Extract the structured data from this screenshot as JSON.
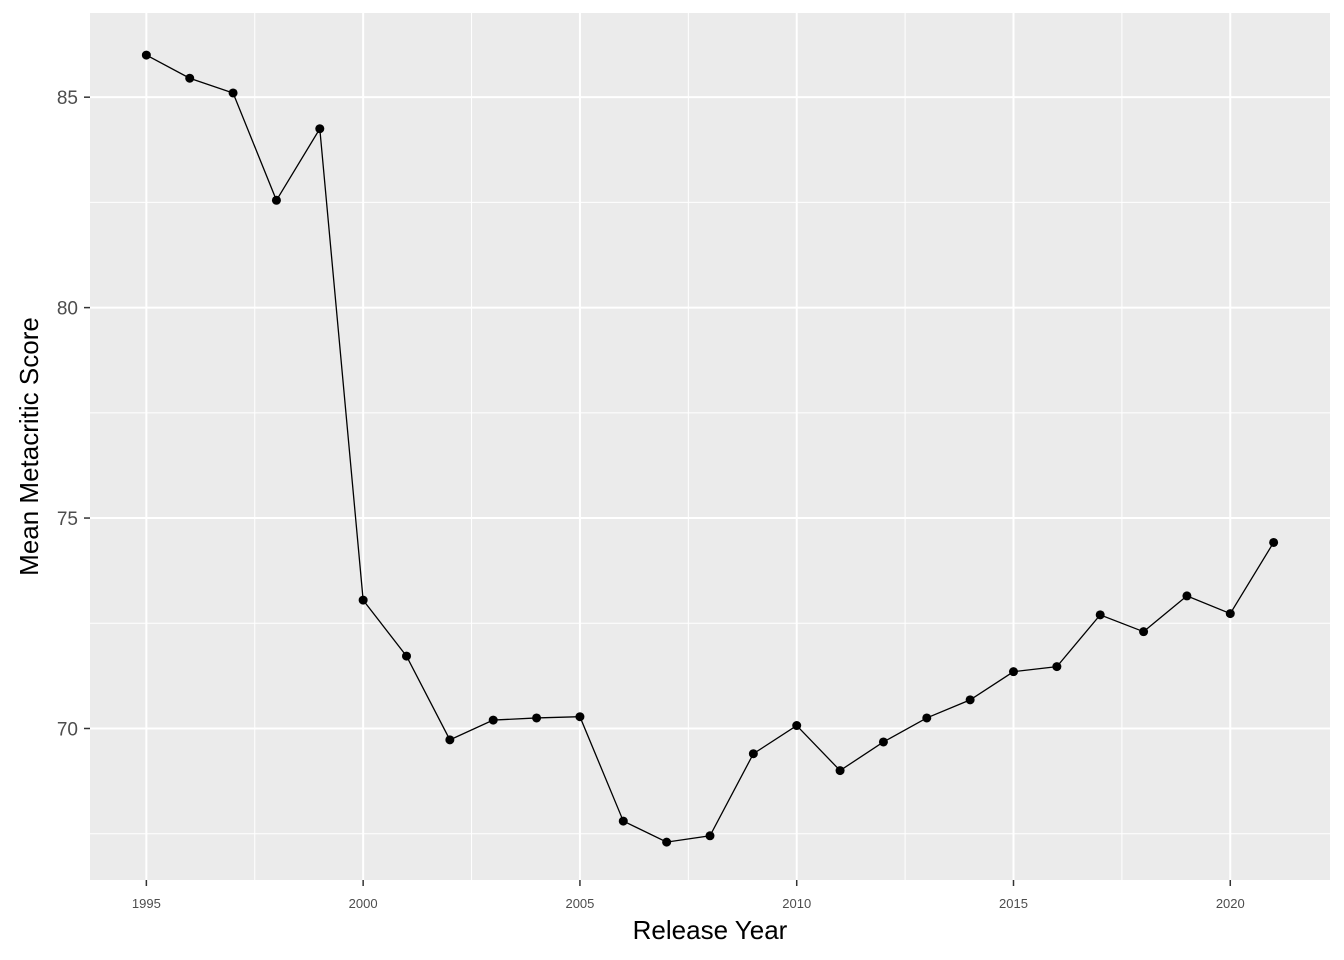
{
  "chart_data": {
    "type": "line",
    "title": "",
    "xlabel": "Release Year",
    "ylabel": "Mean Metacritic Score",
    "x": [
      1995,
      1996,
      1997,
      1998,
      1999,
      2000,
      2001,
      2002,
      2003,
      2004,
      2005,
      2006,
      2007,
      2008,
      2009,
      2010,
      2011,
      2012,
      2013,
      2014,
      2015,
      2016,
      2017,
      2018,
      2019,
      2020,
      2021
    ],
    "series": [
      {
        "values": [
          86.0,
          85.45,
          85.1,
          82.55,
          84.25,
          73.05,
          71.72,
          69.73,
          70.2,
          70.25,
          70.28,
          67.8,
          67.3,
          67.45,
          69.4,
          70.07,
          69.0,
          69.68,
          70.25,
          70.68,
          71.35,
          71.47,
          72.7,
          72.3,
          73.15,
          72.73,
          74.42
        ]
      }
    ],
    "x_ticks": [
      1995,
      2000,
      2005,
      2010,
      2015,
      2020
    ],
    "y_ticks": [
      70,
      75,
      80,
      85
    ],
    "x_tick_labels": [
      "1995",
      "2000",
      "2005",
      "2010",
      "2015",
      "2020"
    ],
    "y_tick_labels": [
      "70",
      "75",
      "80",
      "85"
    ],
    "xlim": [
      1993.7,
      2022.3
    ],
    "ylim": [
      66.4,
      87.0
    ],
    "grid": true,
    "legend": "none",
    "colors": {
      "panel_background": "#ebebeb",
      "grid_major": "#ffffff",
      "line": "#000000",
      "point": "#000000",
      "tick_label": "#4d4d4d",
      "axis_title": "#000000"
    }
  }
}
